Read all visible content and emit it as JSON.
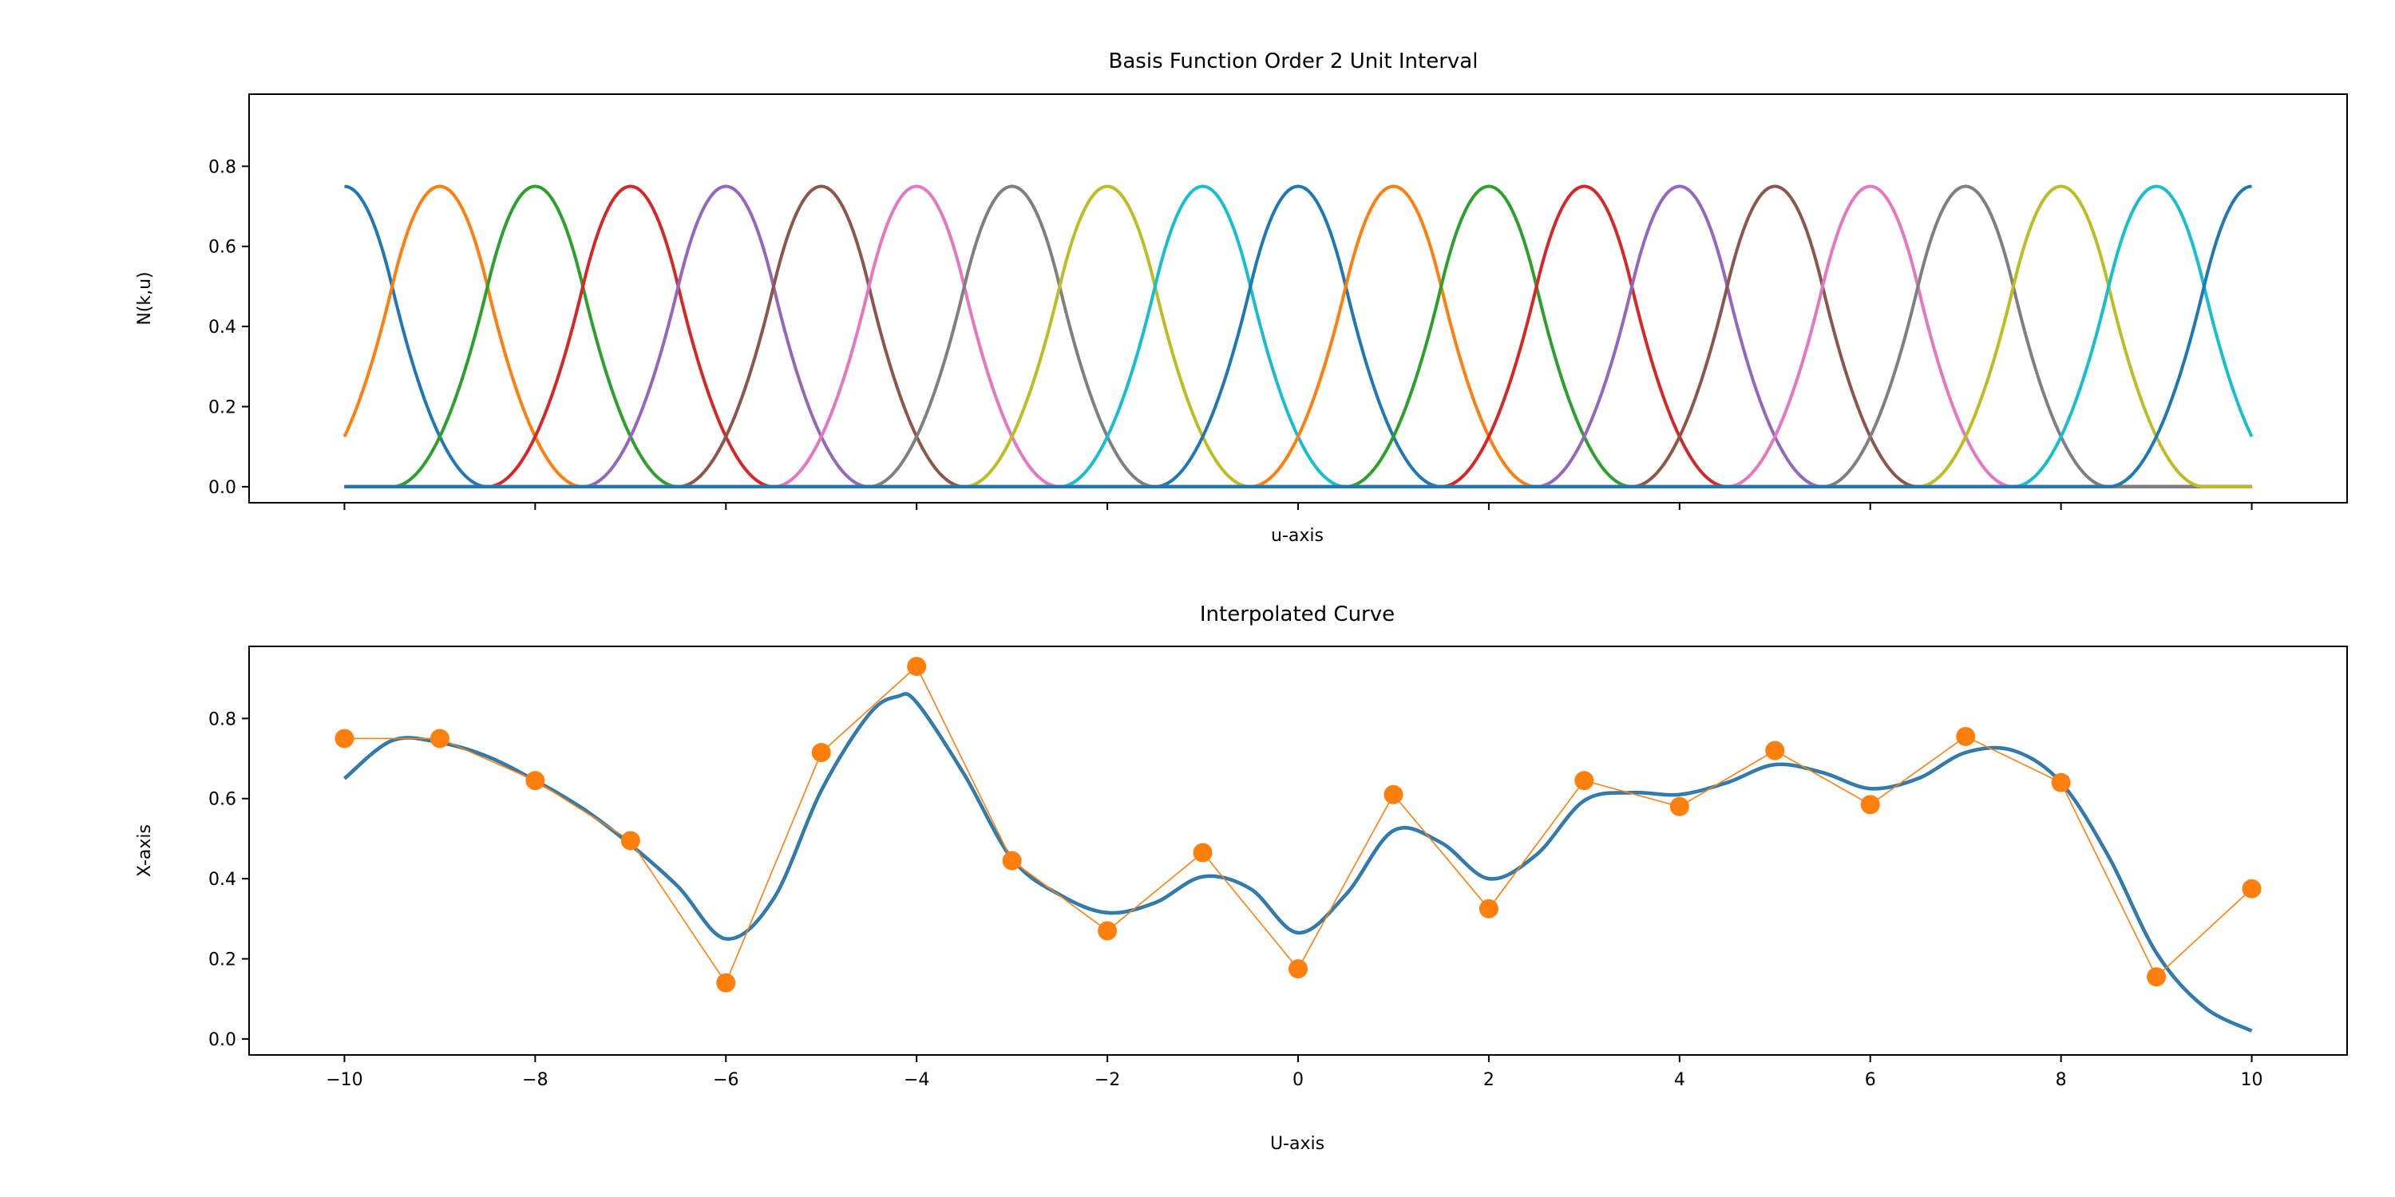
{
  "chart_data": [
    {
      "type": "line",
      "title": "Basis Function Order 2 Unit Interval",
      "xlabel": "u-axis",
      "ylabel": "N(k,u)",
      "xlim": [
        -11,
        11
      ],
      "ylim": [
        -0.04,
        0.98
      ],
      "xticks": [
        -10,
        -8,
        -6,
        -4,
        -2,
        0,
        2,
        4,
        6,
        8,
        10
      ],
      "show_xtick_labels": false,
      "yticks": [
        0.0,
        0.2,
        0.4,
        0.6,
        0.8
      ],
      "ytick_labels": [
        "0.0",
        "0.2",
        "0.4",
        "0.6",
        "0.8"
      ],
      "grid": false,
      "basis": {
        "order": 2,
        "knot_spacing": 1,
        "first_center": -10,
        "count": 21,
        "peak": 0.75,
        "domain": [
          -10,
          10
        ]
      },
      "colors": [
        "#1f77b4",
        "#ff7f0e",
        "#2ca02c",
        "#d62728",
        "#9467bd",
        "#8c564b",
        "#e377c2",
        "#7f7f7f",
        "#bcbd22",
        "#17becf"
      ]
    },
    {
      "type": "line",
      "title": "Interpolated Curve",
      "xlabel": "U-axis",
      "ylabel": "X-axis",
      "xlim": [
        -11,
        11
      ],
      "ylim": [
        -0.04,
        0.98
      ],
      "xticks": [
        -10,
        -8,
        -6,
        -4,
        -2,
        0,
        2,
        4,
        6,
        8,
        10
      ],
      "xtick_labels": [
        "−10",
        "−8",
        "−6",
        "−4",
        "−2",
        "0",
        "2",
        "4",
        "6",
        "8",
        "10"
      ],
      "yticks": [
        0.0,
        0.2,
        0.4,
        0.6,
        0.8
      ],
      "ytick_labels": [
        "0.0",
        "0.2",
        "0.4",
        "0.6",
        "0.8"
      ],
      "grid": false,
      "series": [
        {
          "kind": "curve",
          "color": "#1f77b4",
          "x": [
            -10,
            -9.5,
            -9,
            -8.5,
            -8,
            -7.5,
            -7,
            -6.5,
            -6,
            -5.5,
            -5,
            -4.5,
            -4.2,
            -4,
            -3.5,
            -3,
            -2.5,
            -2,
            -1.5,
            -1,
            -0.5,
            0,
            0.5,
            1,
            1.5,
            2,
            2.5,
            3,
            3.5,
            4,
            4.5,
            5,
            5.5,
            6,
            6.5,
            7,
            7.5,
            8,
            8.5,
            9,
            9.5,
            10
          ],
          "y": [
            0.65,
            0.745,
            0.74,
            0.705,
            0.645,
            0.575,
            0.485,
            0.38,
            0.25,
            0.35,
            0.62,
            0.81,
            0.855,
            0.84,
            0.66,
            0.45,
            0.36,
            0.315,
            0.34,
            0.405,
            0.375,
            0.265,
            0.36,
            0.52,
            0.49,
            0.4,
            0.46,
            0.595,
            0.615,
            0.61,
            0.64,
            0.685,
            0.665,
            0.625,
            0.65,
            0.715,
            0.72,
            0.64,
            0.455,
            0.215,
            0.08,
            0.02
          ]
        },
        {
          "kind": "points",
          "color": "#ff7f0e",
          "x": [
            -10,
            -9,
            -8,
            -7,
            -6,
            -5,
            -4,
            -3,
            -2,
            -1,
            0,
            1,
            2,
            3,
            4,
            5,
            6,
            7,
            8,
            9,
            10
          ],
          "y": [
            0.75,
            0.75,
            0.645,
            0.495,
            0.14,
            0.715,
            0.93,
            0.445,
            0.27,
            0.465,
            0.175,
            0.61,
            0.325,
            0.645,
            0.58,
            0.72,
            0.585,
            0.755,
            0.64,
            0.155,
            0.375
          ]
        }
      ]
    }
  ]
}
